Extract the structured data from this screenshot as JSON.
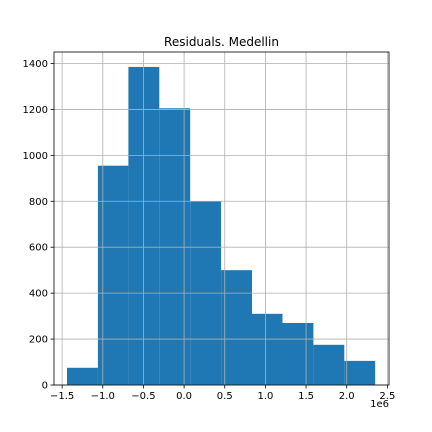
{
  "chart_data": {
    "type": "bar",
    "title": "Residuals. Medellin",
    "xlabel": "",
    "ylabel": "",
    "x_offset_label": "1e6",
    "xlim": [
      -1.6,
      2.52
    ],
    "ylim": [
      0,
      1450
    ],
    "grid": true,
    "bar_color": "#1f77b4",
    "bins": [
      {
        "x0": -1.44,
        "x1": -1.06,
        "count": 75
      },
      {
        "x0": -1.06,
        "x1": -0.685,
        "count": 955
      },
      {
        "x0": -0.685,
        "x1": -0.305,
        "count": 1385
      },
      {
        "x0": -0.305,
        "x1": 0.075,
        "count": 1205
      },
      {
        "x0": 0.075,
        "x1": 0.455,
        "count": 800
      },
      {
        "x0": 0.455,
        "x1": 0.835,
        "count": 500
      },
      {
        "x0": 0.835,
        "x1": 1.21,
        "count": 310
      },
      {
        "x0": 1.21,
        "x1": 1.59,
        "count": 270
      },
      {
        "x0": 1.59,
        "x1": 1.97,
        "count": 175
      },
      {
        "x0": 1.97,
        "x1": 2.35,
        "count": 105
      }
    ],
    "x_ticks": [
      {
        "value": -1.5,
        "label": "−1.5"
      },
      {
        "value": -1.0,
        "label": "−1.0"
      },
      {
        "value": -0.5,
        "label": "−0.5"
      },
      {
        "value": 0.0,
        "label": "0.0"
      },
      {
        "value": 0.5,
        "label": "0.5"
      },
      {
        "value": 1.0,
        "label": "1.0"
      },
      {
        "value": 1.5,
        "label": "1.5"
      },
      {
        "value": 2.0,
        "label": "2.0"
      },
      {
        "value": 2.5,
        "label": "2.5"
      }
    ],
    "y_ticks": [
      {
        "value": 0,
        "label": "0"
      },
      {
        "value": 200,
        "label": "200"
      },
      {
        "value": 400,
        "label": "400"
      },
      {
        "value": 600,
        "label": "600"
      },
      {
        "value": 800,
        "label": "800"
      },
      {
        "value": 1000,
        "label": "1000"
      },
      {
        "value": 1200,
        "label": "1200"
      },
      {
        "value": 1400,
        "label": "1400"
      }
    ]
  }
}
